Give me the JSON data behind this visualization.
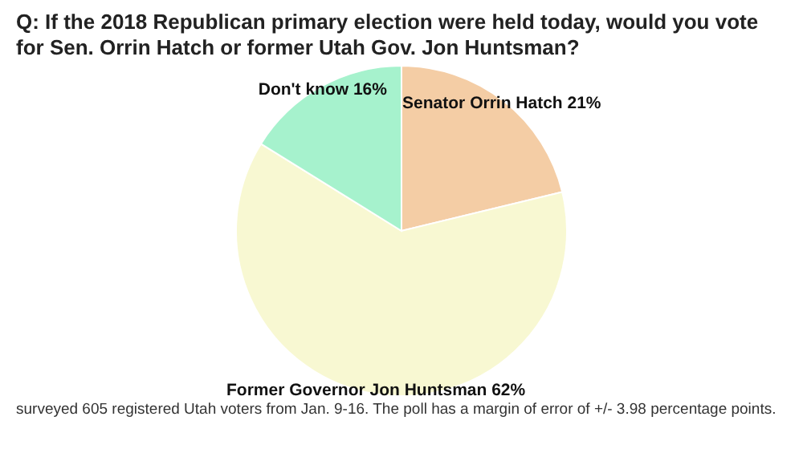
{
  "chart_data": {
    "type": "pie",
    "title": "Q: If the 2018 Republican primary election were held today, would you vote for Sen. Orrin Hatch or former Utah Gov. Jon Huntsman?",
    "categories": [
      "Senator Orrin Hatch",
      "Former Governor Jon Huntsman",
      "Don't know"
    ],
    "values": [
      21,
      62,
      16
    ],
    "colors": [
      "#f4cda5",
      "#f8f8d2",
      "#a6f2cd"
    ],
    "value_labels": [
      "21%",
      "62%",
      "16%"
    ],
    "annotations": [
      "surveyed 605 registered Utah voters from Jan. 9-16. The poll has a margin of error of +/- 3.98 percentage points."
    ]
  }
}
